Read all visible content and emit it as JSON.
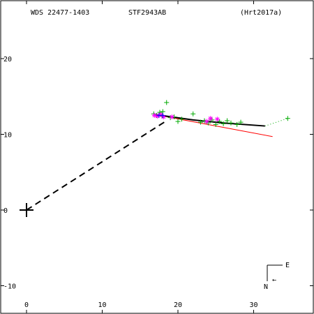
{
  "header": {
    "wds": "WDS 22477-1403",
    "name": "STF2943AB",
    "ref": "(Hrt2017a)"
  },
  "compass": {
    "east": "E",
    "north": "N",
    "arrow": "←"
  },
  "chart_data": {
    "type": "scatter",
    "title": "",
    "xlabel": "",
    "ylabel": "",
    "xlim": [
      -3.5,
      37.5
    ],
    "ylim": [
      -13.5,
      28
    ],
    "xticks": [
      0,
      10,
      20,
      30
    ],
    "yticks": [
      -10,
      0,
      10,
      20
    ],
    "primary": [
      0,
      0
    ],
    "node_line": {
      "from": [
        0,
        0
      ],
      "to": [
        18.5,
        11.8
      ]
    },
    "orbit": [
      [
        17.0,
        12.6
      ],
      [
        18.5,
        12.4
      ],
      [
        22.0,
        11.9
      ],
      [
        26.0,
        11.5
      ],
      [
        31.5,
        11.1
      ]
    ],
    "red_line": [
      [
        17.0,
        12.6
      ],
      [
        32.5,
        9.7
      ]
    ],
    "green_dotted": [
      [
        31.5,
        11.1
      ],
      [
        34.5,
        12.1
      ]
    ],
    "obs_green": [
      [
        16.8,
        12.7
      ],
      [
        17.2,
        12.5
      ],
      [
        17.6,
        12.9
      ],
      [
        17.9,
        12.4
      ],
      [
        18.0,
        13.0
      ],
      [
        18.5,
        14.2
      ],
      [
        19.0,
        12.2
      ],
      [
        19.5,
        12.3
      ],
      [
        20.0,
        11.7
      ],
      [
        20.5,
        12.0
      ],
      [
        22.0,
        12.7
      ],
      [
        23.0,
        11.6
      ],
      [
        23.5,
        11.8
      ],
      [
        24.0,
        11.5
      ],
      [
        24.5,
        11.9
      ],
      [
        25.0,
        11.3
      ],
      [
        25.5,
        11.7
      ],
      [
        26.0,
        11.4
      ],
      [
        26.5,
        11.8
      ],
      [
        27.0,
        11.5
      ],
      [
        27.8,
        11.3
      ],
      [
        28.3,
        11.6
      ],
      [
        34.5,
        12.1
      ]
    ],
    "obs_magenta": [
      [
        16.9,
        12.5
      ],
      [
        17.3,
        12.4
      ],
      [
        17.7,
        12.6
      ],
      [
        18.1,
        12.3
      ],
      [
        19.2,
        12.3
      ],
      [
        23.8,
        11.7
      ],
      [
        24.3,
        12.1
      ],
      [
        25.2,
        12.0
      ]
    ],
    "obs_blue": [
      [
        17.5,
        12.5
      ],
      [
        18.0,
        12.5
      ]
    ],
    "colors": {
      "orbit": "#000000",
      "red": "#ff0000",
      "green": "#00aa00",
      "magenta": "#ff00ff",
      "blue": "#0000ff"
    }
  }
}
